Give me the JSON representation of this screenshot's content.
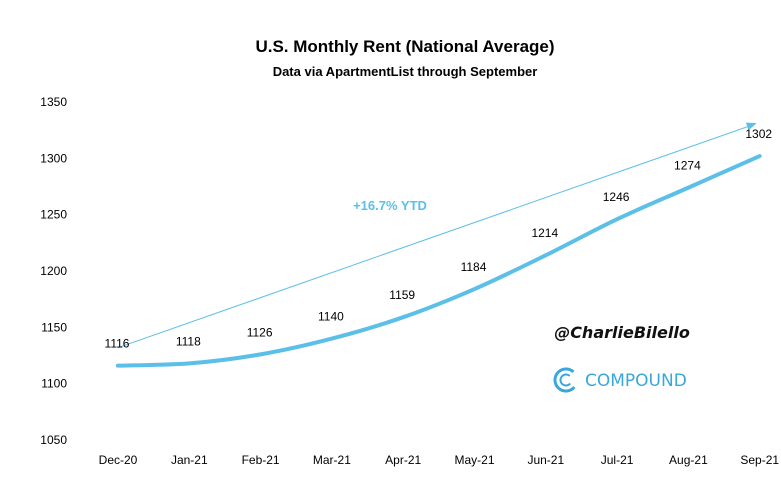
{
  "chart_data": {
    "type": "line",
    "title": "U.S. Monthly Rent (National Average)",
    "subtitle": "Data via ApartmentList through September",
    "xlabel": "",
    "ylabel": "",
    "categories": [
      "Dec-20",
      "Jan-21",
      "Feb-21",
      "Mar-21",
      "Apr-21",
      "May-21",
      "Jun-21",
      "Jul-21",
      "Aug-21",
      "Sep-21"
    ],
    "series": [
      {
        "values": [
          1116,
          1118,
          1126,
          1140,
          1159,
          1184,
          1214,
          1246,
          1274,
          1302
        ]
      }
    ],
    "ylim": [
      1050,
      1350
    ],
    "yticks": [
      1050,
      1100,
      1150,
      1200,
      1250,
      1300,
      1350
    ],
    "grid": false,
    "legend": "none",
    "line_color": "#5bbfe8",
    "annotation": {
      "text": "+16.7% YTD",
      "color": "#5bbfe8",
      "arrow": {
        "from": {
          "category": "Dec-20",
          "value": 1116
        },
        "to": {
          "category": "Sep-21",
          "value": 1302
        }
      }
    }
  },
  "watermark": {
    "handle": "@CharlieBilello",
    "brand": "COMPOUND",
    "brand_color": "#3aa7dc"
  }
}
